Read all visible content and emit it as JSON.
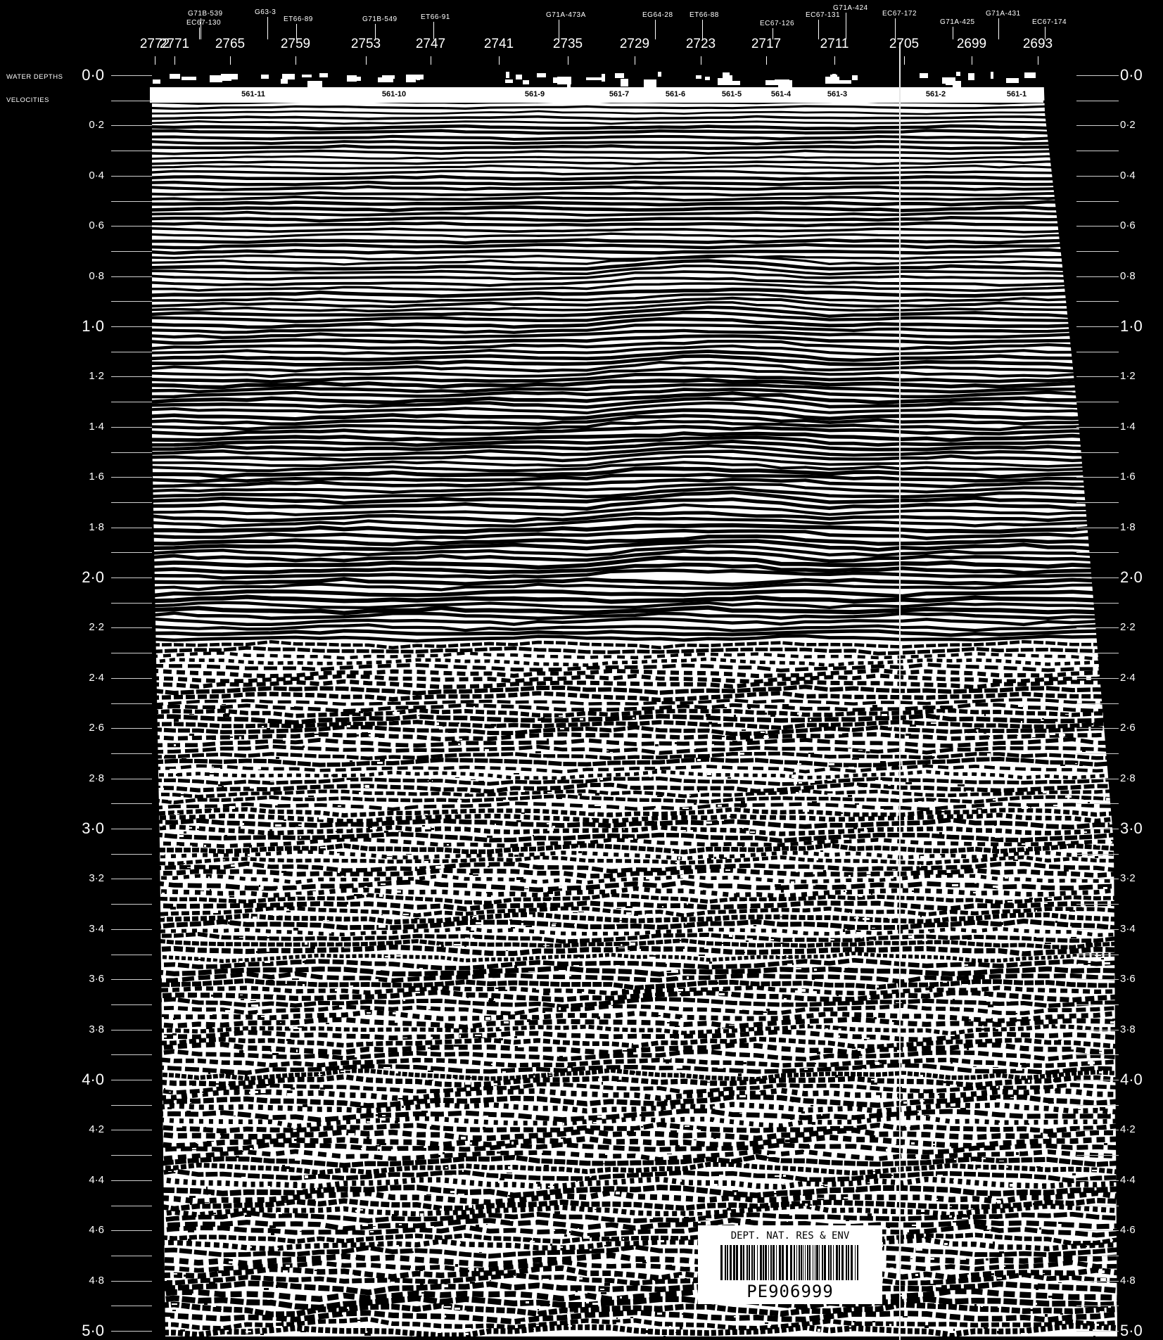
{
  "header": {
    "water_depths_label": "WATER DEPTHS",
    "velocities_label": "VELOCITIES"
  },
  "shotpoints": [
    "2772",
    "2771",
    "2765",
    "2759",
    "2753",
    "2747",
    "2741",
    "2735",
    "2729",
    "2723",
    "2717",
    "2711",
    "2705",
    "2699",
    "2693"
  ],
  "wells": [
    "G71B-539",
    "EC67-130",
    "G63-3",
    "ET66-89",
    "G71B-549",
    "ET66-91",
    "G71A-473A",
    "EG64-28",
    "ET66-88",
    "EC67-126",
    "EC67-131",
    "G71A-424",
    "EC67-172",
    "G71A-425",
    "G71A-431",
    "EC67-174"
  ],
  "velocity_labels": [
    "561-11",
    "561-10",
    "561-9",
    "561-7",
    "561-6",
    "561-5",
    "561-4",
    "561-3",
    "561-2",
    "561-1"
  ],
  "time_axis": {
    "left_labels": [
      "0·0",
      "0·2",
      "0·4",
      "0·6",
      "0·8",
      "1·0",
      "1·2",
      "1·4",
      "1·6",
      "1·8",
      "2·0",
      "2·2",
      "2·4",
      "2·6",
      "2·8",
      "3·0",
      "3·2",
      "3·4",
      "3·6",
      "3·8",
      "4·0",
      "4·2",
      "4·4",
      "4·6",
      "4·8",
      "5·0"
    ],
    "right_labels": [
      "0·0",
      "0·2",
      "0·4",
      "0·6",
      "0·8",
      "1·0",
      "1·2",
      "1·4",
      "1·6",
      "1·8",
      "2·0",
      "2·2",
      "2·4",
      "2·6",
      "2·8",
      "3·0",
      "3·2",
      "3·4",
      "3·6",
      "3·8",
      "4·0",
      "4·2",
      "4·4",
      "4·6",
      "4·8",
      "5·0"
    ]
  },
  "barcode": {
    "dept": "DEPT. NAT. RES & ENV",
    "id": "PE906999"
  },
  "colors": {
    "background": "#000000",
    "trace": "#ffffff"
  }
}
